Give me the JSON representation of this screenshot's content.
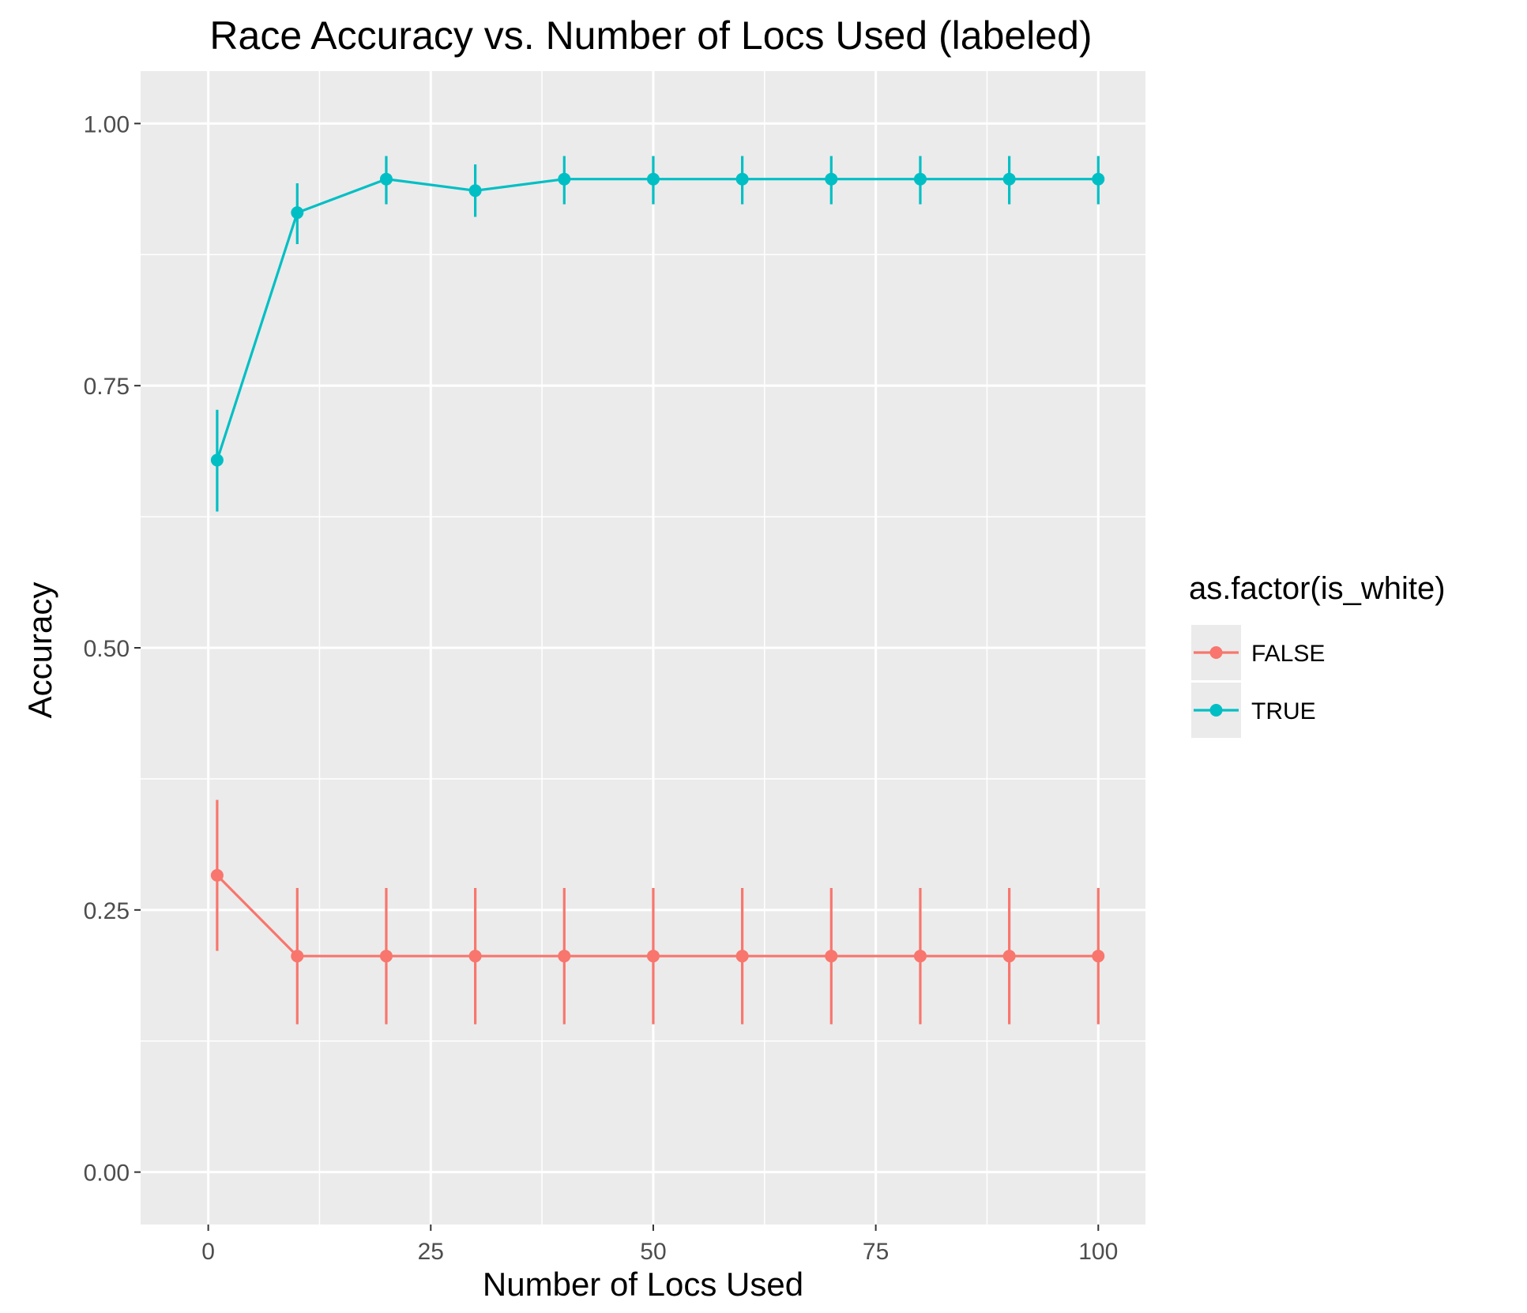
{
  "chart_data": {
    "type": "line",
    "title": "Race Accuracy vs. Number of Locs Used (labeled)",
    "xlabel": "Number of Locs Used",
    "ylabel": "Accuracy",
    "xlim": [
      -7.6,
      105.3
    ],
    "ylim": [
      -0.05,
      1.05
    ],
    "x_ticks": [
      0,
      25,
      50,
      75,
      100
    ],
    "x_tick_labels": [
      "0",
      "25",
      "50",
      "75",
      "100"
    ],
    "y_ticks": [
      0,
      0.25,
      0.5,
      0.75,
      1.0
    ],
    "y_tick_labels": [
      "0.00",
      "0.25",
      "0.50",
      "0.75",
      "1.00"
    ],
    "grid": true,
    "legend": {
      "title": "as.factor(is_white)",
      "position": "right"
    },
    "x": [
      1,
      10,
      20,
      30,
      40,
      50,
      60,
      70,
      80,
      90,
      100
    ],
    "series": [
      {
        "name": "FALSE",
        "color": "#f8766d",
        "values": [
          0.283,
          0.206,
          0.206,
          0.206,
          0.206,
          0.206,
          0.206,
          0.206,
          0.206,
          0.206,
          0.206
        ],
        "lower": [
          0.211,
          0.141,
          0.141,
          0.141,
          0.141,
          0.141,
          0.141,
          0.141,
          0.141,
          0.141,
          0.141
        ],
        "upper": [
          0.355,
          0.271,
          0.271,
          0.271,
          0.271,
          0.271,
          0.271,
          0.271,
          0.271,
          0.271,
          0.271
        ]
      },
      {
        "name": "TRUE",
        "color": "#00bfc4",
        "values": [
          0.679,
          0.915,
          0.947,
          0.936,
          0.947,
          0.947,
          0.947,
          0.947,
          0.947,
          0.947,
          0.947
        ],
        "lower": [
          0.63,
          0.885,
          0.923,
          0.911,
          0.923,
          0.923,
          0.923,
          0.923,
          0.923,
          0.923,
          0.923
        ],
        "upper": [
          0.727,
          0.943,
          0.969,
          0.961,
          0.969,
          0.969,
          0.969,
          0.969,
          0.969,
          0.969,
          0.969
        ]
      }
    ]
  }
}
